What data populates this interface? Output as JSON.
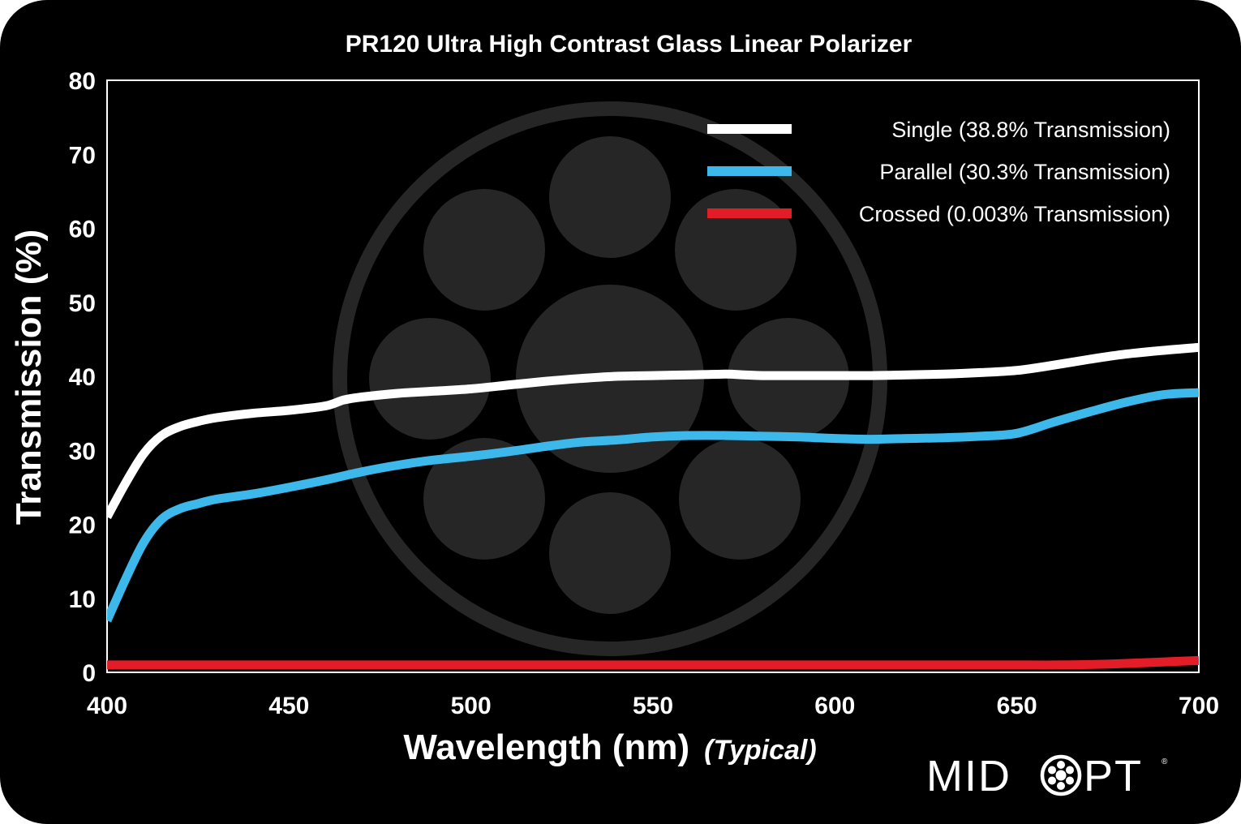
{
  "chart_data": {
    "type": "line",
    "title": "PR120 Ultra High Contrast Glass Linear Polarizer",
    "xlabel": "Wavelength (nm)",
    "xlabel_note": "(Typical)",
    "ylabel": "Transmission (%)",
    "xlim": [
      400,
      700
    ],
    "ylim": [
      0,
      80
    ],
    "x_ticks": [
      "400",
      "450",
      "500",
      "550",
      "600",
      "650",
      "700"
    ],
    "y_ticks": [
      "0",
      "10",
      "20",
      "30",
      "40",
      "50",
      "60",
      "70",
      "80"
    ],
    "grid": false,
    "legend_position": "top-right",
    "series": [
      {
        "name": "Single (38.8% Transmission)",
        "color": "#ffffff",
        "x": [
          400,
          405,
          410,
          415,
          420,
          425,
          430,
          440,
          450,
          460,
          465,
          470,
          480,
          490,
          500,
          510,
          520,
          530,
          540,
          550,
          560,
          570,
          575,
          580,
          590,
          600,
          610,
          620,
          630,
          640,
          650,
          660,
          670,
          680,
          690,
          700
        ],
        "y": [
          21,
          25.5,
          29.5,
          32,
          33.2,
          33.9,
          34.4,
          35,
          35.4,
          36,
          36.8,
          37.2,
          37.7,
          38,
          38.3,
          38.8,
          39.3,
          39.7,
          40,
          40.1,
          40.2,
          40.3,
          40.2,
          40.1,
          40.1,
          40.1,
          40.1,
          40.2,
          40.3,
          40.5,
          40.8,
          41.5,
          42.3,
          43,
          43.5,
          43.9
        ]
      },
      {
        "name": "Parallel (30.3% Transmission)",
        "color": "#3db8ea",
        "x": [
          400,
          405,
          410,
          415,
          420,
          425,
          430,
          440,
          450,
          460,
          470,
          480,
          490,
          500,
          510,
          520,
          530,
          540,
          550,
          560,
          570,
          580,
          590,
          600,
          610,
          620,
          630,
          640,
          650,
          660,
          670,
          680,
          690,
          700
        ],
        "y": [
          7,
          12.5,
          17.5,
          20.7,
          22.1,
          22.8,
          23.4,
          24.1,
          25,
          26,
          27.1,
          28,
          28.7,
          29.2,
          29.8,
          30.5,
          31.1,
          31.4,
          31.8,
          32,
          32,
          31.9,
          31.8,
          31.6,
          31.5,
          31.6,
          31.7,
          31.9,
          32.3,
          33.8,
          35.2,
          36.5,
          37.5,
          37.8
        ]
      },
      {
        "name": "Crossed (0.003% Transmission)",
        "color": "#e21d27",
        "x": [
          400,
          450,
          500,
          550,
          600,
          650,
          660,
          670,
          680,
          690,
          700
        ],
        "y": [
          1,
          1,
          1,
          1,
          1,
          1,
          1,
          1.05,
          1.2,
          1.4,
          1.6
        ]
      }
    ]
  },
  "logo": {
    "text_left": "MID",
    "text_right": "PT",
    "mark": "®"
  }
}
